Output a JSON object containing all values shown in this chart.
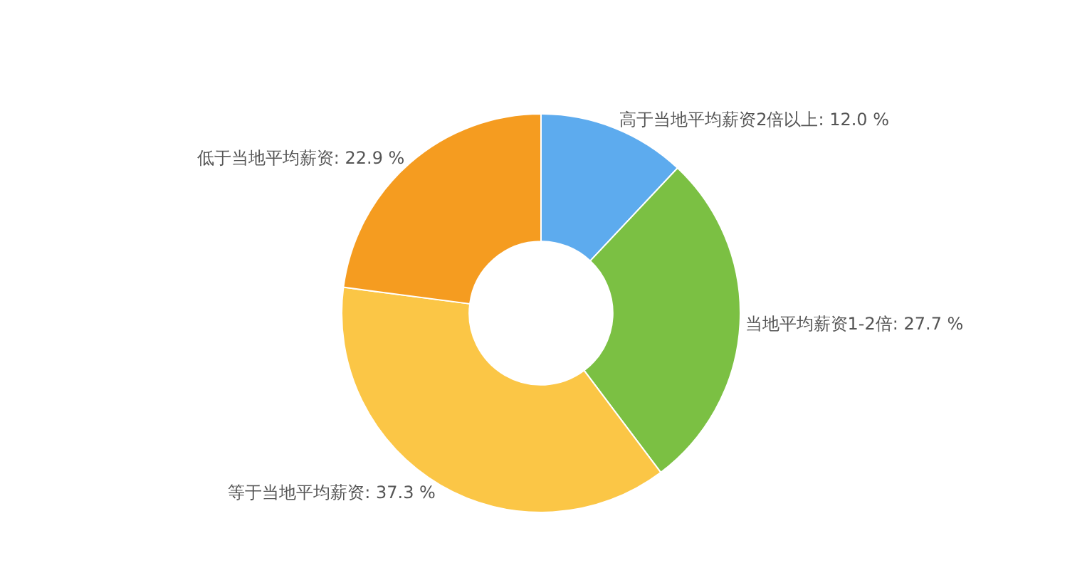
{
  "chart_data": {
    "type": "donut",
    "categories": [
      "高于当地平均薪资2倍以上",
      "当地平均薪资1-2倍",
      "等于当地平均薪资",
      "低于当地平均薪资"
    ],
    "values": [
      12.0,
      27.7,
      37.3,
      22.9
    ],
    "value_labels": [
      "12.0 %",
      "27.7 %",
      "37.3 %",
      "22.9 %"
    ],
    "colors": [
      "#5dabee",
      "#7bc043",
      "#fbc646",
      "#f59c20"
    ],
    "legend": false
  }
}
